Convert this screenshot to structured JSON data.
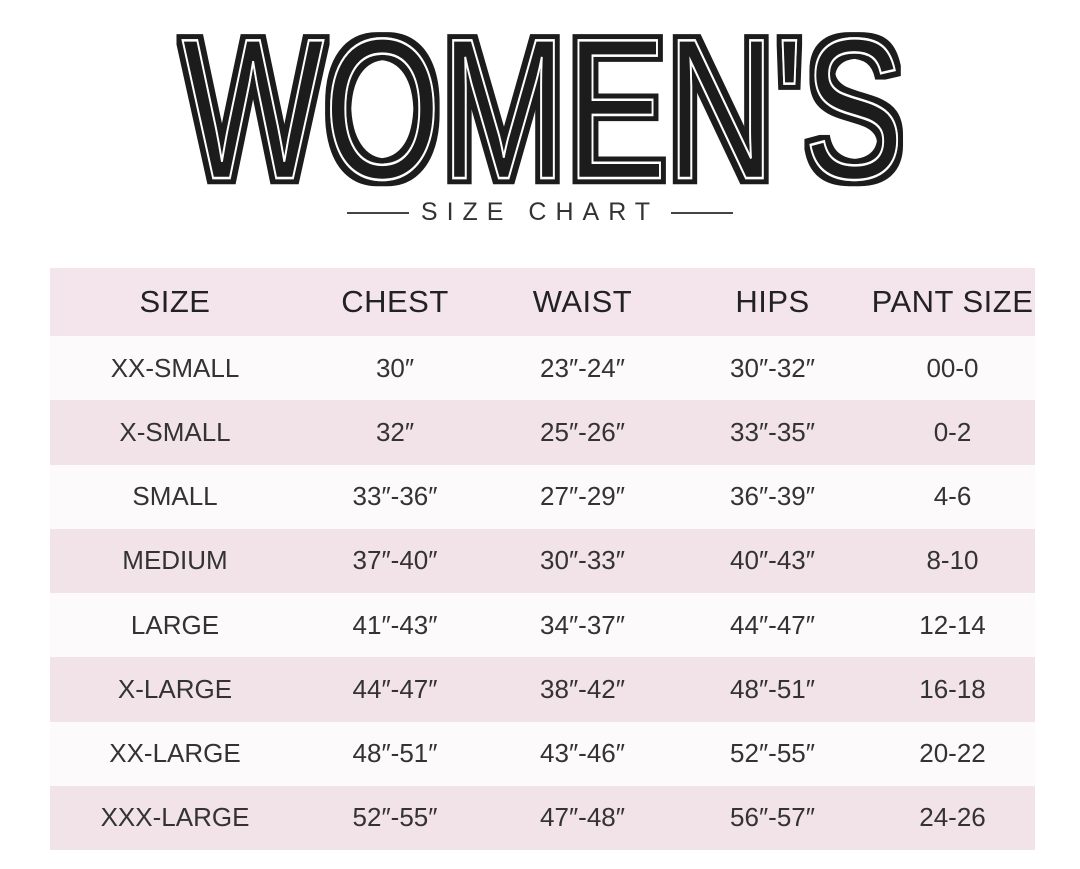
{
  "header": {
    "title": "WOMEN'S",
    "subtitle": "SIZE CHART"
  },
  "colors": {
    "header_row": "#f3e5eb",
    "row_light": "#fcfafb",
    "row_pink": "#f2e3e9",
    "text": "#2a2a2a"
  },
  "table": {
    "columns": [
      "SIZE",
      "CHEST",
      "WAIST",
      "HIPS",
      "PANT SIZE"
    ],
    "rows": [
      [
        "XX-SMALL",
        "30″",
        "23″-24″",
        "30″-32″",
        "00-0"
      ],
      [
        "X-SMALL",
        "32″",
        "25″-26″",
        "33″-35″",
        "0-2"
      ],
      [
        "SMALL",
        "33″-36″",
        "27″-29″",
        "36″-39″",
        "4-6"
      ],
      [
        "MEDIUM",
        "37″-40″",
        "30″-33″",
        "40″-43″",
        "8-10"
      ],
      [
        "LARGE",
        "41″-43″",
        "34″-37″",
        "44″-47″",
        "12-14"
      ],
      [
        "X-LARGE",
        "44″-47″",
        "38″-42″",
        "48″-51″",
        "16-18"
      ],
      [
        "XX-LARGE",
        "48″-51″",
        "43″-46″",
        "52″-55″",
        "20-22"
      ],
      [
        "XXX-LARGE",
        "52″-55″",
        "47″-48″",
        "56″-57″",
        "24-26"
      ]
    ]
  }
}
